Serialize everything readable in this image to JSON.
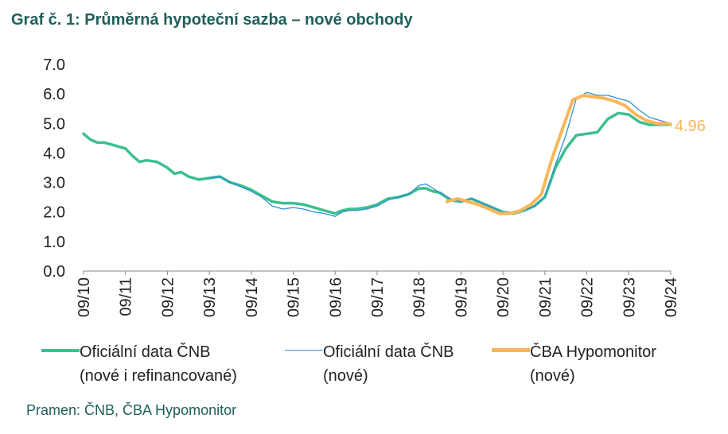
{
  "title": "Graf č. 1: Průměrná hypoteční sazba – nové obchody",
  "source": "Pramen: ČNB, ČBA Hypomonitor",
  "colors": {
    "cnb_all": "#3cc08e",
    "cnb_new": "#2f8fd6",
    "cba": "#f8b75a",
    "title": "#1f5f5b"
  },
  "chart_data": {
    "type": "line",
    "title": "Graf č. 1: Průměrná hypoteční sazba – nové obchody",
    "xlabel": "",
    "ylabel": "",
    "ylim": [
      0,
      7
    ],
    "yticks": [
      "0.0",
      "1.0",
      "2.0",
      "3.0",
      "4.0",
      "5.0",
      "6.0",
      "7.0"
    ],
    "xticks": [
      "09/10",
      "09/11",
      "09/12",
      "09/13",
      "09/14",
      "09/15",
      "09/16",
      "09/17",
      "09/18",
      "09/19",
      "09/20",
      "09/21",
      "09/22",
      "09/23",
      "09/24"
    ],
    "xlim": [
      "2010-09",
      "2024-09"
    ],
    "grid": false,
    "legend": "bottom",
    "end_label": "4.96",
    "series": [
      {
        "name": "Oficiální data ČNB (nové i refinancované)",
        "color": "#3cc08e",
        "x": [
          "2010-09",
          "2010-11",
          "2011-01",
          "2011-03",
          "2011-06",
          "2011-09",
          "2011-11",
          "2012-01",
          "2012-03",
          "2012-06",
          "2012-09",
          "2012-11",
          "2013-01",
          "2013-03",
          "2013-06",
          "2013-09",
          "2013-12",
          "2014-03",
          "2014-06",
          "2014-09",
          "2014-12",
          "2015-03",
          "2015-06",
          "2015-09",
          "2015-12",
          "2016-03",
          "2016-06",
          "2016-09",
          "2016-11",
          "2017-01",
          "2017-03",
          "2017-06",
          "2017-09",
          "2017-12",
          "2018-03",
          "2018-06",
          "2018-09",
          "2018-11",
          "2019-01",
          "2019-03",
          "2019-06",
          "2019-09",
          "2019-12",
          "2020-03",
          "2020-06",
          "2020-09",
          "2020-12",
          "2021-03",
          "2021-06",
          "2021-09",
          "2021-12",
          "2022-03",
          "2022-06",
          "2022-09",
          "2022-12",
          "2023-03",
          "2023-06",
          "2023-09",
          "2023-12",
          "2024-03",
          "2024-06",
          "2024-09"
        ],
        "y": [
          4.65,
          4.45,
          4.35,
          4.35,
          4.25,
          4.15,
          3.9,
          3.7,
          3.75,
          3.7,
          3.5,
          3.3,
          3.35,
          3.2,
          3.1,
          3.15,
          3.2,
          3.0,
          2.9,
          2.75,
          2.55,
          2.35,
          2.3,
          2.3,
          2.25,
          2.15,
          2.05,
          1.95,
          2.05,
          2.1,
          2.1,
          2.15,
          2.25,
          2.45,
          2.5,
          2.6,
          2.8,
          2.8,
          2.7,
          2.65,
          2.4,
          2.35,
          2.45,
          2.3,
          2.15,
          2.0,
          1.95,
          2.05,
          2.2,
          2.5,
          3.5,
          4.15,
          4.6,
          4.65,
          4.7,
          5.15,
          5.35,
          5.3,
          5.05,
          4.95,
          4.96,
          4.96
        ]
      },
      {
        "name": "Oficiální data ČNB (nové)",
        "color": "#2f8fd6",
        "x": [
          "2013-09",
          "2013-12",
          "2014-03",
          "2014-06",
          "2014-09",
          "2014-12",
          "2015-03",
          "2015-06",
          "2015-09",
          "2015-12",
          "2016-03",
          "2016-06",
          "2016-09",
          "2016-11",
          "2017-01",
          "2017-03",
          "2017-06",
          "2017-09",
          "2017-12",
          "2018-03",
          "2018-06",
          "2018-09",
          "2018-11",
          "2019-01",
          "2019-03",
          "2019-06",
          "2019-09",
          "2019-12",
          "2020-03",
          "2020-06",
          "2020-09",
          "2020-12",
          "2021-03",
          "2021-06",
          "2021-09",
          "2021-12",
          "2022-03",
          "2022-06",
          "2022-09",
          "2022-12",
          "2023-03",
          "2023-06",
          "2023-09",
          "2023-12",
          "2024-03",
          "2024-06",
          "2024-09"
        ],
        "y": [
          3.15,
          3.2,
          3.0,
          2.85,
          2.7,
          2.5,
          2.2,
          2.1,
          2.15,
          2.1,
          2.0,
          1.95,
          1.85,
          2.0,
          2.05,
          2.05,
          2.1,
          2.2,
          2.4,
          2.5,
          2.6,
          2.9,
          2.95,
          2.8,
          2.65,
          2.45,
          2.35,
          2.45,
          2.3,
          2.15,
          2.0,
          1.95,
          2.05,
          2.2,
          2.55,
          3.6,
          4.6,
          5.85,
          6.05,
          5.95,
          5.95,
          5.85,
          5.75,
          5.45,
          5.2,
          5.1,
          5.0
        ]
      },
      {
        "name": "ČBA Hypomonitor (nové)",
        "color": "#f8b75a",
        "x": [
          "2019-05",
          "2019-08",
          "2019-11",
          "2020-02",
          "2020-05",
          "2020-08",
          "2020-11",
          "2021-02",
          "2021-05",
          "2021-08",
          "2021-11",
          "2022-02",
          "2022-05",
          "2022-08",
          "2022-11",
          "2023-02",
          "2023-05",
          "2023-08",
          "2023-11",
          "2024-02",
          "2024-05",
          "2024-08",
          "2024-09"
        ],
        "y": [
          2.35,
          2.45,
          2.35,
          2.25,
          2.1,
          1.95,
          1.95,
          2.05,
          2.25,
          2.6,
          3.8,
          4.8,
          5.8,
          5.95,
          5.9,
          5.85,
          5.75,
          5.6,
          5.3,
          5.1,
          5.0,
          5.0,
          4.96
        ]
      }
    ]
  },
  "legend": [
    {
      "line1": "Oficiální data ČNB",
      "line2": "(nové i refinancované)"
    },
    {
      "line1": "Oficiální data ČNB",
      "line2": "(nové)"
    },
    {
      "line1": "ČBA Hypomonitor",
      "line2": "(nové)"
    }
  ]
}
